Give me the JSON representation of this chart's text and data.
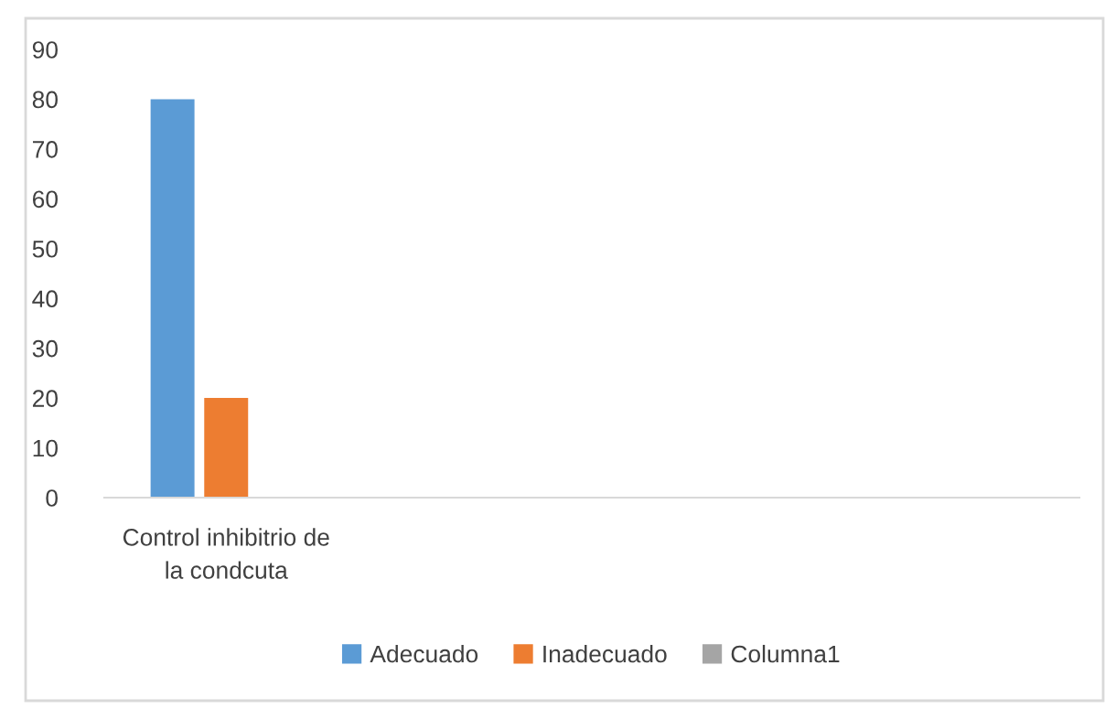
{
  "chart_data": {
    "type": "bar",
    "categories": [
      "Control inhibitrio de la condcuta",
      null,
      null,
      null
    ],
    "series": [
      {
        "name": "Adecuado",
        "color": "#5b9bd5",
        "values": [
          80,
          null,
          null,
          null
        ]
      },
      {
        "name": "Inadecuado",
        "color": "#ed7d31",
        "values": [
          20,
          null,
          null,
          null
        ]
      },
      {
        "name": "Columna1",
        "color": "#a5a5a5",
        "values": [
          null,
          null,
          null,
          null
        ]
      }
    ],
    "ylim": [
      0,
      90
    ],
    "yticks": [
      0,
      10,
      20,
      30,
      40,
      50,
      60,
      70,
      80,
      90
    ],
    "grid": false,
    "legend": "bottom"
  }
}
